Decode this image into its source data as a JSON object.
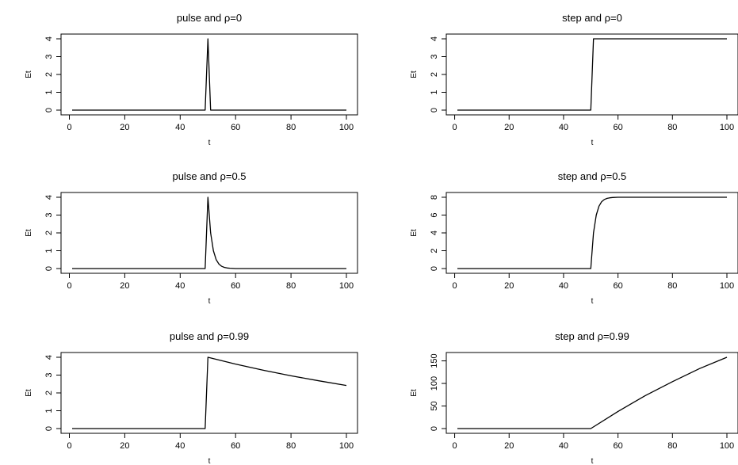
{
  "chart_data": [
    {
      "type": "line",
      "title": "pulse and ρ=0",
      "xlabel": "t",
      "ylabel": "Et",
      "xlim": [
        1,
        100
      ],
      "ylim": [
        0,
        4
      ],
      "xticks": [
        0,
        20,
        40,
        60,
        80,
        100
      ],
      "yticks": [
        0,
        1,
        2,
        3,
        4
      ],
      "grid": false,
      "series": [
        {
          "x": [
            1,
            49,
            50,
            51,
            100
          ],
          "values": [
            0,
            0,
            4,
            0,
            0
          ]
        }
      ]
    },
    {
      "type": "line",
      "title": "step and ρ=0",
      "xlabel": "t",
      "ylabel": "Et",
      "xlim": [
        1,
        100
      ],
      "ylim": [
        0,
        4
      ],
      "xticks": [
        0,
        20,
        40,
        60,
        80,
        100
      ],
      "yticks": [
        0,
        1,
        2,
        3,
        4
      ],
      "grid": false,
      "series": [
        {
          "x": [
            1,
            50,
            51,
            100
          ],
          "values": [
            0,
            0,
            4,
            4
          ]
        }
      ]
    },
    {
      "type": "line",
      "title": "pulse and ρ=0.5",
      "xlabel": "t",
      "ylabel": "Et",
      "xlim": [
        1,
        100
      ],
      "ylim": [
        0,
        4
      ],
      "xticks": [
        0,
        20,
        40,
        60,
        80,
        100
      ],
      "yticks": [
        0,
        1,
        2,
        3,
        4
      ],
      "grid": false,
      "series": [
        {
          "x": [
            1,
            49,
            50,
            51,
            52,
            53,
            54,
            55,
            56,
            57,
            58,
            60,
            100
          ],
          "values": [
            0,
            0,
            4,
            2,
            1,
            0.5,
            0.25,
            0.125,
            0.0625,
            0.031,
            0.016,
            0,
            0
          ]
        }
      ]
    },
    {
      "type": "line",
      "title": "step and ρ=0.5",
      "xlabel": "t",
      "ylabel": "Et",
      "xlim": [
        1,
        100
      ],
      "ylim": [
        0,
        8
      ],
      "xticks": [
        0,
        20,
        40,
        60,
        80,
        100
      ],
      "yticks": [
        0,
        2,
        4,
        6,
        8
      ],
      "grid": false,
      "series": [
        {
          "x": [
            1,
            50,
            51,
            52,
            53,
            54,
            55,
            56,
            57,
            58,
            60,
            100
          ],
          "values": [
            0,
            0,
            4,
            6,
            7,
            7.5,
            7.75,
            7.875,
            7.94,
            7.97,
            8,
            8
          ]
        }
      ]
    },
    {
      "type": "line",
      "title": "pulse and ρ=0.99",
      "xlabel": "t",
      "ylabel": "Et",
      "xlim": [
        1,
        100
      ],
      "ylim": [
        0,
        4
      ],
      "xticks": [
        0,
        20,
        40,
        60,
        80,
        100
      ],
      "yticks": [
        0,
        1,
        2,
        3,
        4
      ],
      "grid": false,
      "series": [
        {
          "x": [
            1,
            49,
            50,
            60,
            70,
            80,
            90,
            100
          ],
          "values": [
            0,
            0,
            4,
            3.62,
            3.27,
            2.96,
            2.68,
            2.42
          ]
        }
      ]
    },
    {
      "type": "line",
      "title": "step and ρ=0.99",
      "xlabel": "t",
      "ylabel": "Et",
      "xlim": [
        1,
        100
      ],
      "ylim": [
        0,
        158
      ],
      "xticks": [
        0,
        20,
        40,
        60,
        80,
        100
      ],
      "yticks": [
        0,
        50,
        100,
        150
      ],
      "grid": false,
      "series": [
        {
          "x": [
            1,
            50,
            60,
            70,
            80,
            90,
            100
          ],
          "values": [
            0,
            0,
            38,
            73,
            104,
            133,
            158
          ]
        }
      ]
    }
  ]
}
